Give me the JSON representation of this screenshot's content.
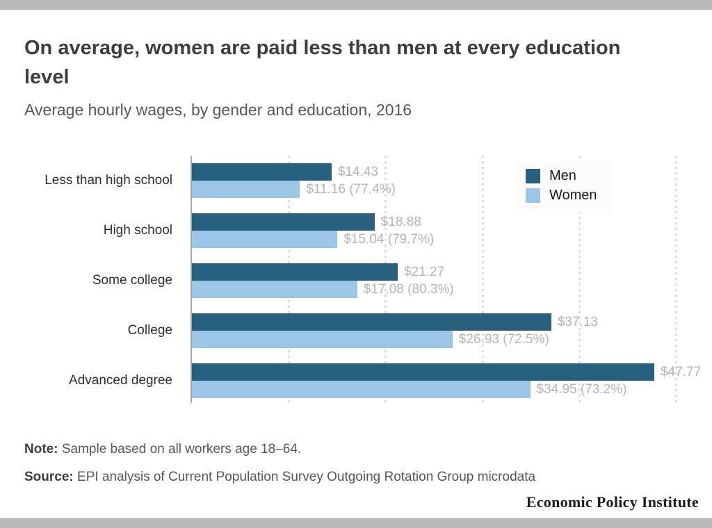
{
  "header": {
    "title": "On average, women are paid less than men at every education level",
    "subtitle": "Average hourly wages, by gender and education, 2016"
  },
  "chart_data": {
    "type": "bar",
    "orientation": "horizontal",
    "title": "On average, women are paid less than men at every education level",
    "subtitle": "Average hourly wages, by gender and education, 2016",
    "categories": [
      "Less than high school",
      "High school",
      "Some college",
      "College",
      "Advanced degree"
    ],
    "series": [
      {
        "name": "Men",
        "color": "#27617f",
        "values": [
          14.43,
          18.88,
          21.27,
          37.13,
          47.77
        ],
        "labels": [
          "$14.43",
          "$18.88",
          "$21.27",
          "$37.13",
          "$47.77"
        ]
      },
      {
        "name": "Women",
        "color": "#9cc6e8",
        "values": [
          11.16,
          15.04,
          17.08,
          26.93,
          34.95
        ],
        "labels": [
          "$11.16 (77.4%)",
          "$15.04 (79.7%)",
          "$17.08 (80.3%)",
          "$26.93 (72.5%)",
          "$34.95 (73.2%)"
        ]
      }
    ],
    "axis_max": 50,
    "gridline_values": [
      10,
      20,
      30,
      40,
      50
    ],
    "grid": "dotted-vertical",
    "legend_position": "top-right"
  },
  "legend": {
    "items": [
      {
        "label": "Men",
        "color": "#27617f"
      },
      {
        "label": "Women",
        "color": "#9cc6e8"
      }
    ]
  },
  "notes": {
    "note_label": "Note:",
    "note_text": " Sample based on all workers age 18–64.",
    "source_label": "Source:",
    "source_text": " EPI analysis of Current Population Survey Outgoing Rotation Group microdata"
  },
  "footer": {
    "brand": "Economic Policy Institute"
  },
  "colors": {
    "strip": "#b9b9b9",
    "men": "#27617f",
    "women": "#9cc6e8",
    "value_label": "#b4b4b4",
    "axis": "#a6a6a6",
    "gridline": "#dcdcdc"
  }
}
